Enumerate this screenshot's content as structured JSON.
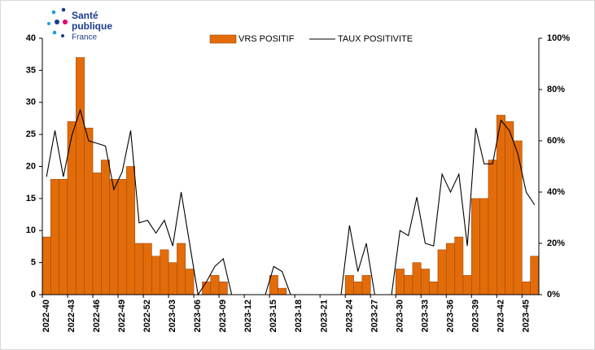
{
  "logo": {
    "line1": "Santé",
    "line2": "publique",
    "line3": "France"
  },
  "chart_data": {
    "type": "bar",
    "categories": [
      "2022-40",
      null,
      null,
      "2022-43",
      null,
      null,
      "2022-46",
      null,
      null,
      "2022-49",
      null,
      null,
      "2022-52",
      null,
      null,
      "2023-03",
      null,
      null,
      "2023-06",
      null,
      null,
      "2023-09",
      null,
      null,
      "2023-12",
      null,
      null,
      "2023-15",
      null,
      null,
      "2023-18",
      null,
      null,
      "2023-21",
      null,
      null,
      "2023-24",
      null,
      null,
      "2023-27",
      null,
      null,
      "2023-30",
      null,
      null,
      "2023-33",
      null,
      null,
      "2023-36",
      null,
      null,
      "2023-39",
      null,
      null,
      "2023-42",
      null,
      null,
      "2023-45",
      null
    ],
    "series": [
      {
        "name": "VRS POSITIF",
        "type": "bar",
        "color": "#e36c0a",
        "values": [
          9,
          18,
          18,
          27,
          37,
          26,
          19,
          21,
          18,
          18,
          20,
          8,
          8,
          6,
          7,
          5,
          8,
          4,
          0,
          2,
          3,
          2,
          0,
          0,
          0,
          0,
          0,
          3,
          1,
          0,
          0,
          0,
          0,
          0,
          0,
          0,
          3,
          2,
          3,
          0,
          0,
          0,
          4,
          3,
          5,
          4,
          2,
          7,
          8,
          9,
          3,
          15,
          15,
          21,
          28,
          27,
          24,
          2,
          6
        ]
      },
      {
        "name": "TAUX POSITIVITE",
        "type": "line",
        "axis": "y2",
        "color": "#000000",
        "values": [
          46,
          64,
          46,
          62,
          72,
          60,
          59,
          58,
          41,
          48,
          64,
          28,
          29,
          24,
          29,
          19,
          40,
          20,
          0,
          5,
          11,
          14,
          0,
          0,
          0,
          0,
          0,
          11,
          9,
          0,
          0,
          0,
          0,
          0,
          0,
          0,
          27,
          9,
          20,
          0,
          0,
          0,
          25,
          23,
          38,
          20,
          19,
          47,
          40,
          47,
          19,
          65,
          51,
          51,
          68,
          64,
          55,
          40,
          35
        ]
      }
    ],
    "ylim": [
      0,
      40
    ],
    "yticks": [
      0,
      5,
      10,
      15,
      20,
      25,
      30,
      35,
      40
    ],
    "y2lim": [
      0,
      100
    ],
    "y2ticks": [
      {
        "value": 0,
        "label": "0%"
      },
      {
        "value": 20,
        "label": "20%"
      },
      {
        "value": 40,
        "label": "40%"
      },
      {
        "value": 60,
        "label": "60%"
      },
      {
        "value": 80,
        "label": "80%"
      },
      {
        "value": 100,
        "label": "100%"
      }
    ],
    "legend": "top"
  }
}
